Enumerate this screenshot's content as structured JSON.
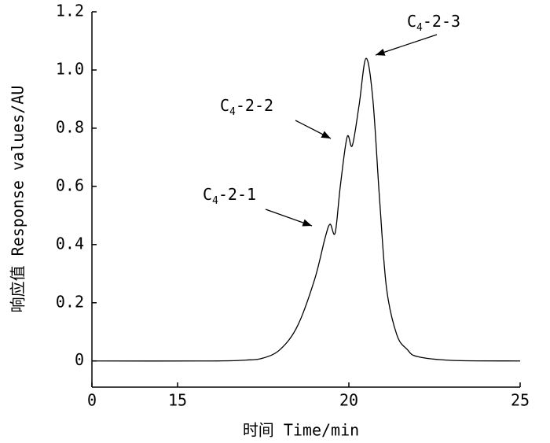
{
  "chart_data": {
    "type": "line",
    "x_label": "时间 Time/min",
    "y_label": "响应值 Response values/AU",
    "x": [
      12.5,
      16,
      17,
      17.5,
      18,
      18.5,
      19,
      19.3,
      19.45,
      19.6,
      19.75,
      19.95,
      20.1,
      20.3,
      20.5,
      20.7,
      20.9,
      21.1,
      21.4,
      21.7,
      22,
      23,
      25
    ],
    "values": [
      0,
      0,
      0.003,
      0.01,
      0.04,
      0.12,
      0.28,
      0.42,
      0.47,
      0.44,
      0.6,
      0.77,
      0.74,
      0.88,
      1.04,
      0.9,
      0.55,
      0.25,
      0.09,
      0.04,
      0.015,
      0.002,
      0
    ],
    "color": "#000000",
    "xlim": [
      12.5,
      25
    ],
    "xticks": [
      {
        "value": 12.5,
        "label": "0"
      },
      15,
      20,
      25
    ],
    "ylim": [
      -0.09,
      1.2
    ],
    "yticks": [
      0,
      0.2,
      0.4,
      0.6,
      0.8,
      {
        "value": 1.0,
        "label": "1.0"
      },
      1.2
    ],
    "annotations": [
      {
        "parts": [
          "C",
          "4",
          "-2-1"
        ]
      },
      {
        "parts": [
          "C",
          "4",
          "-2-2"
        ]
      },
      {
        "parts": [
          "C",
          "4",
          "-2-3"
        ]
      }
    ]
  }
}
